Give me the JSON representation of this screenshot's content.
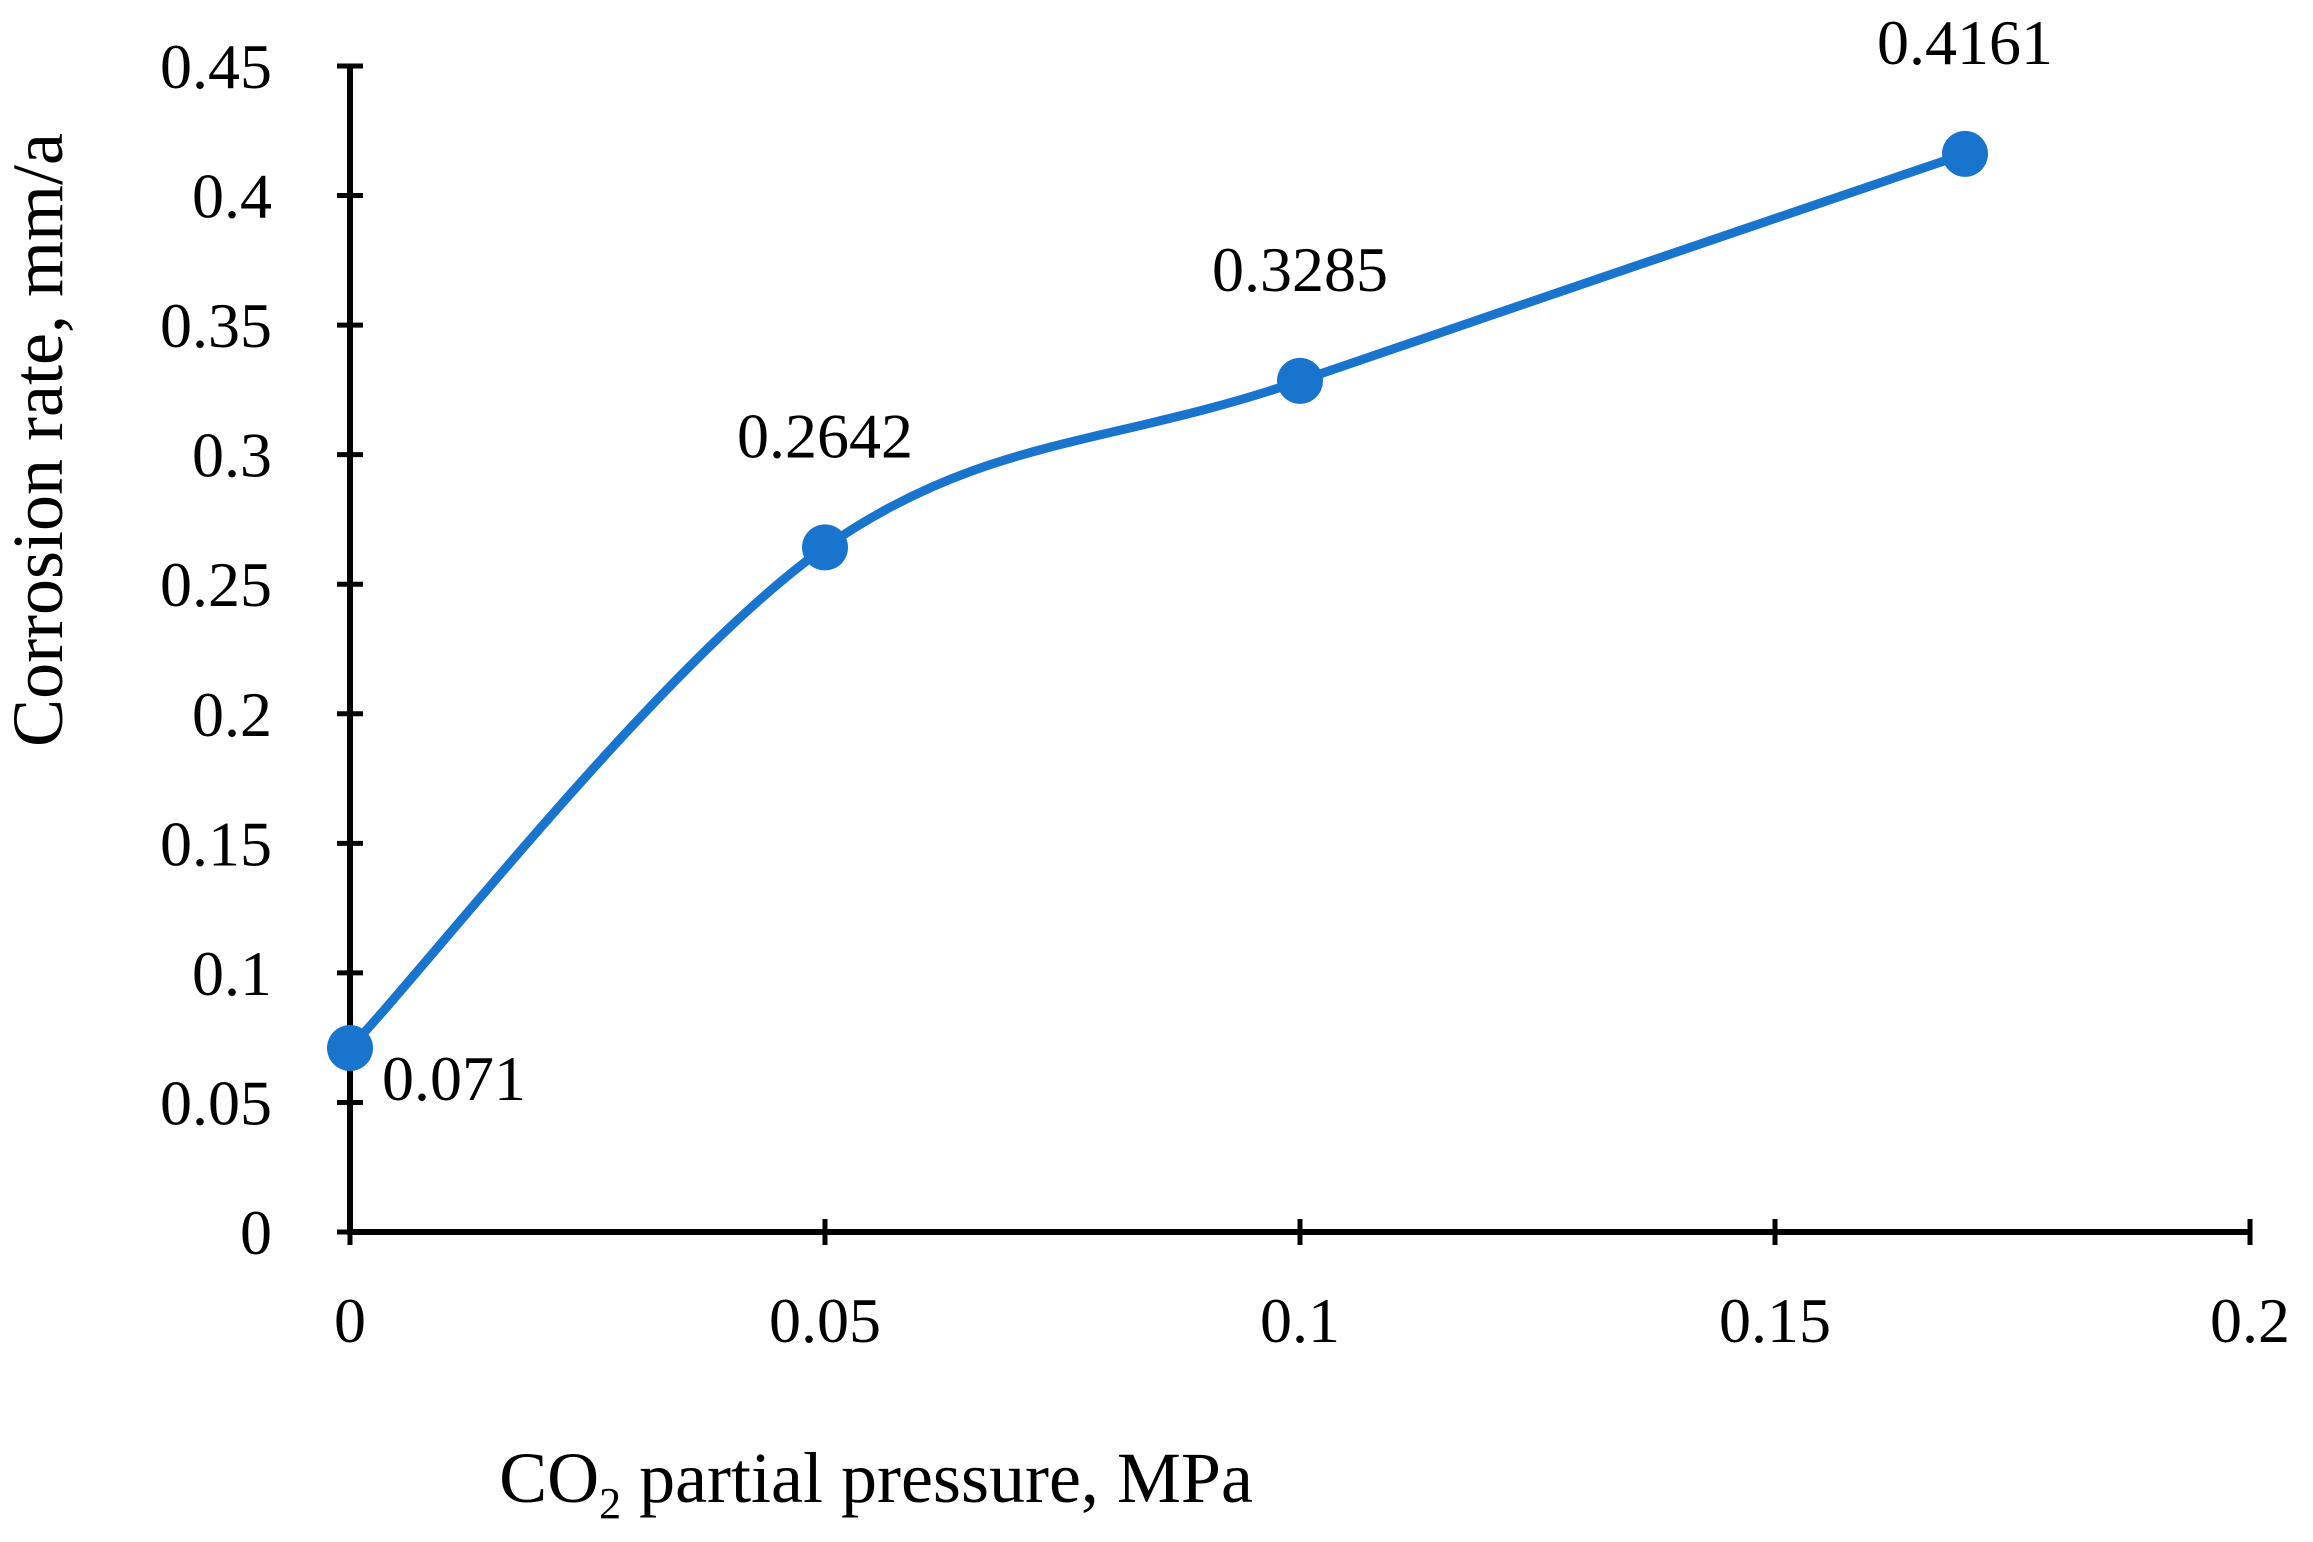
{
  "chart_data": {
    "type": "line",
    "smooth": true,
    "x": [
      0,
      0.05,
      0.1,
      0.17
    ],
    "series": [
      {
        "values": [
          0.071,
          0.2642,
          0.3285,
          0.4161
        ],
        "color": "#1874CD"
      }
    ],
    "data_labels": [
      "0.071",
      "0.2642",
      "0.3285",
      "0.4161"
    ],
    "xlabel": {
      "pre": "CO",
      "sub": "2",
      "post": " partial pressure, MPa"
    },
    "ylabel": "Corrosion rate, mm/a",
    "xlim": [
      0,
      0.2
    ],
    "ylim": [
      0,
      0.45
    ],
    "x_ticks": [
      "0",
      "0.05",
      "0.1",
      "0.15",
      "0.2"
    ],
    "y_ticks": [
      "0",
      "0.05",
      "0.1",
      "0.15",
      "0.2",
      "0.25",
      "0.3",
      "0.35",
      "0.4",
      "0.45"
    ],
    "grid": false,
    "legend": "none",
    "axis_color": "#000000",
    "marker": "circle"
  }
}
